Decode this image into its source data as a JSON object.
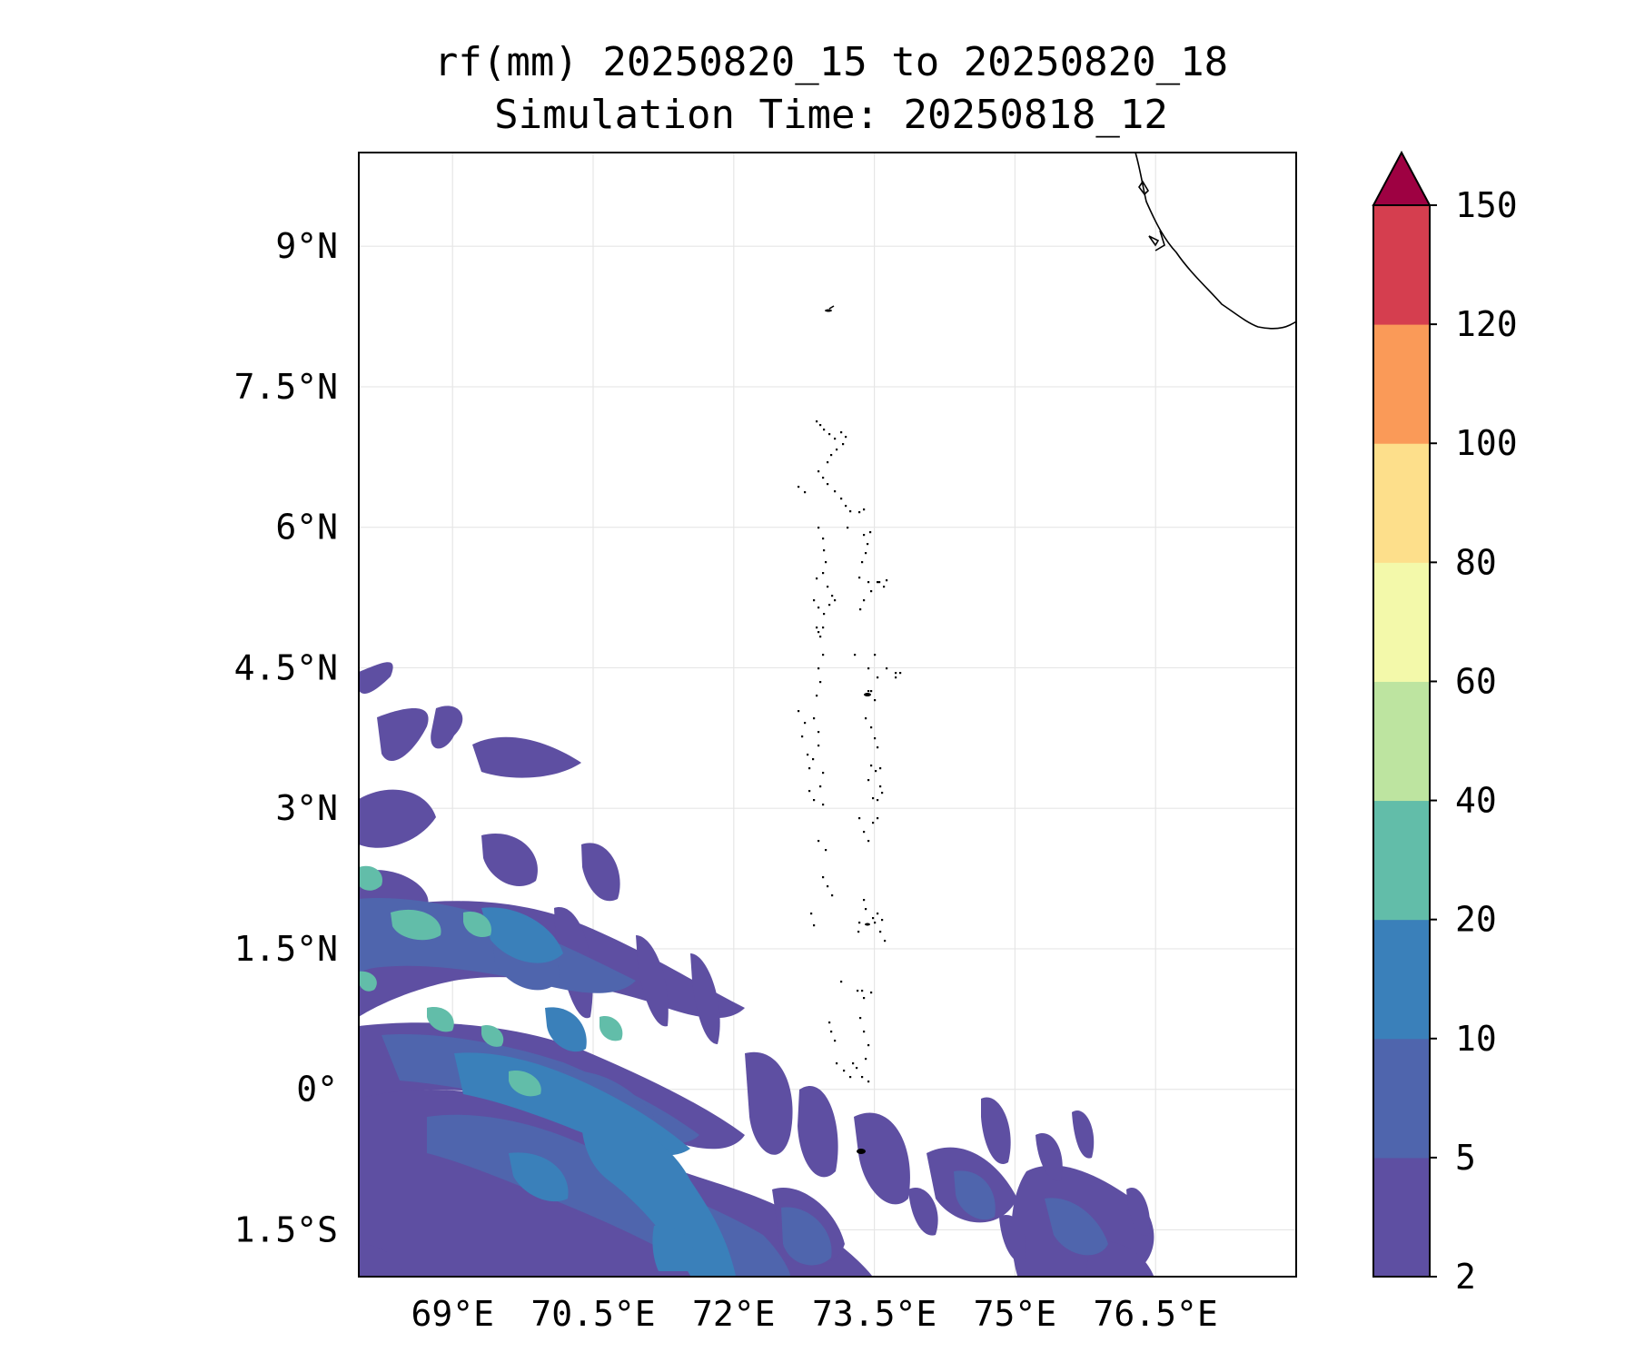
{
  "title": {
    "line1": "rf(mm) 20250820_15 to 20250820_18",
    "line2": "Simulation Time: 20250818_12"
  },
  "map": {
    "lon_range": [
      68.0,
      78.0
    ],
    "lat_range": [
      -2.0,
      10.0
    ],
    "x_ticks": [
      69,
      70.5,
      72,
      73.5,
      75,
      76.5
    ],
    "x_tick_labels": [
      "69°E",
      "70.5°E",
      "72°E",
      "73.5°E",
      "75°E",
      "76.5°E"
    ],
    "y_ticks": [
      9,
      7.5,
      6,
      4.5,
      3,
      1.5,
      0,
      -1.5
    ],
    "y_tick_labels": [
      "9°N",
      "7.5°N",
      "6°N",
      "4.5°N",
      "3°N",
      "1.5°N",
      "0°",
      "1.5°S"
    ],
    "grid": true,
    "coastline_color": "#000000"
  },
  "colorbar": {
    "levels": [
      2,
      5,
      10,
      20,
      40,
      60,
      80,
      100,
      120,
      150
    ],
    "level_labels": [
      "2",
      "5",
      "10",
      "20",
      "40",
      "60",
      "80",
      "100",
      "120",
      "150"
    ],
    "colors": [
      "#5e4fa2",
      "#4f65ad",
      "#3a80ba",
      "#62bda9",
      "#bde4a0",
      "#f3f9aa",
      "#fddf8b",
      "#fa9a58",
      "#d53e4f"
    ],
    "extend_color": "#9e0142",
    "extend": "max"
  }
}
